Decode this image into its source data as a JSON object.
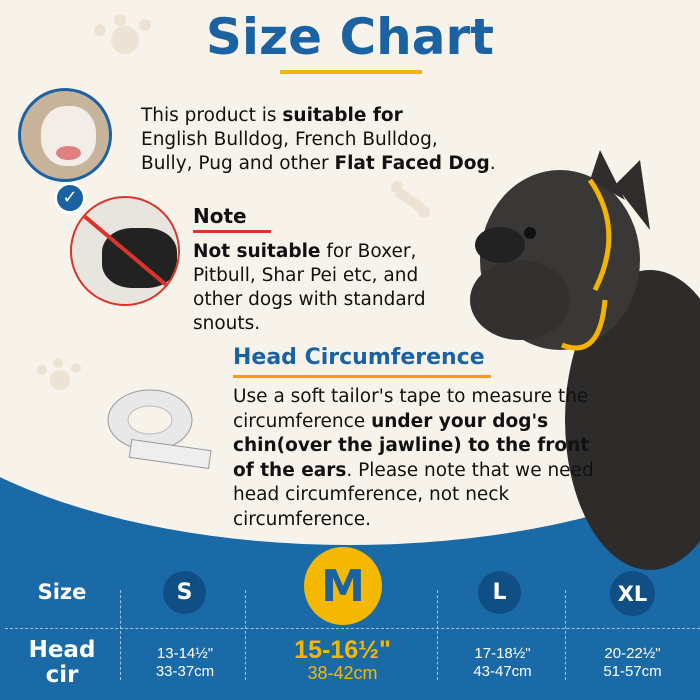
{
  "title": "Size Chart",
  "suitable": {
    "pre": "This product is ",
    "bold1": "suitable for",
    "line2": "English Bulldog, French Bulldog,",
    "line3a": "Bully, Pug and other ",
    "bold2": "Flat Faced Dog",
    "line3b": "."
  },
  "note": {
    "heading": "Note",
    "bold": "Not suitable",
    "l1": " for Boxer,",
    "l2": "Pitbull, Shar Pei etc, and",
    "l3": "other dogs with standard",
    "l4": "snouts."
  },
  "head_circumference": {
    "heading": "Head Circumference",
    "l1": "Use a soft tailor's tape to measure the",
    "l2a": "circumference ",
    "l2b": "under your dog's",
    "l3": "chin(over the jawline) to the front",
    "l4a": "of the ears",
    "l4b": ". Please note that we need",
    "l5": "head circumference, not neck",
    "l6": "circumference."
  },
  "table": {
    "row1_label": "Size",
    "row2_label1": "Head",
    "row2_label2": "cir",
    "sizes": [
      {
        "size": "S",
        "inch": "13-14½\"",
        "cm": "33-37cm"
      },
      {
        "size": "M",
        "inch": "15-16½\"",
        "cm": "38-42cm",
        "highlight": true
      },
      {
        "size": "L",
        "inch": "17-18½\"",
        "cm": "43-47cm"
      },
      {
        "size": "XL",
        "inch": "20-22½\"",
        "cm": "51-57cm"
      }
    ]
  },
  "colors": {
    "blue": "#1b6aa8",
    "title_blue": "#1b62a3",
    "yellow": "#f5b800",
    "cream": "#f8f3ea",
    "badge": "#0f4f85"
  }
}
